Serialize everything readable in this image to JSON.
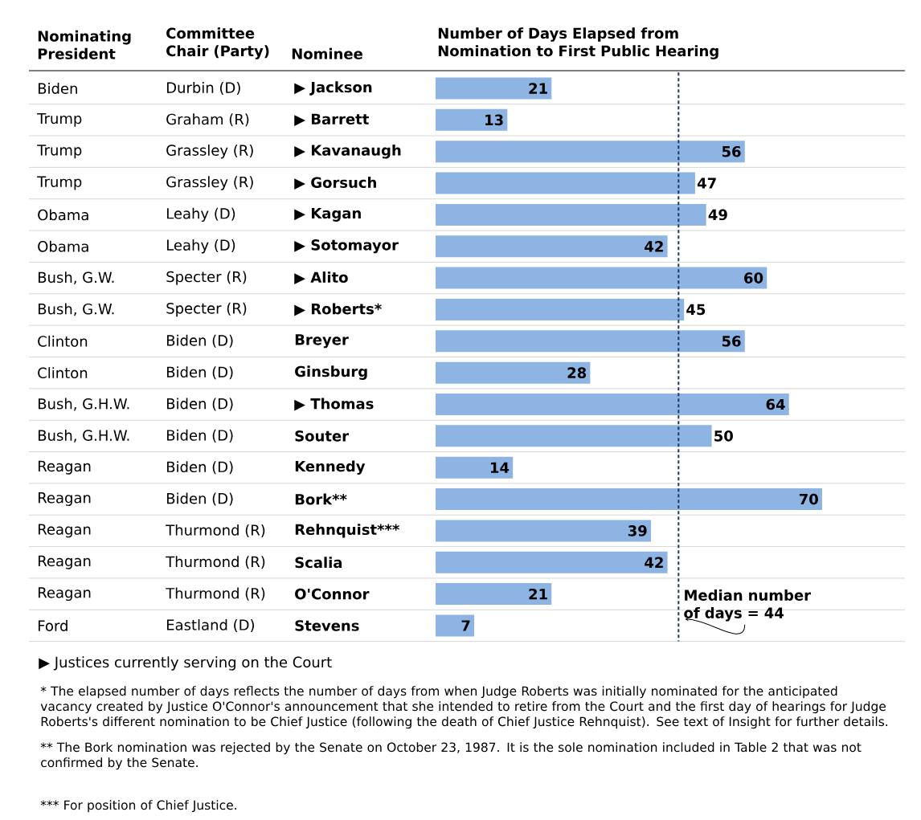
{
  "chart_data": {
    "type": "bar",
    "orientation": "horizontal",
    "title": "Number of Days Elapsed from Nomination to First Public Hearing",
    "ylabel": "Nominee",
    "categories": [
      "▶ Jackson",
      "▶ Barrett",
      "▶ Kavanaugh",
      "▶ Gorsuch",
      "▶ Kagan",
      "▶ Sotomayor",
      "▶ Alito",
      "▶ Roberts*",
      "Breyer",
      "Ginsburg",
      "▶ Thomas",
      "Souter",
      "Kennedy",
      "Bork**",
      "Rehnquist***",
      "Scalia",
      "O'Connor",
      "Stevens"
    ],
    "values": [
      21,
      13,
      56,
      47,
      49,
      42,
      60,
      45,
      56,
      28,
      64,
      50,
      14,
      70,
      39,
      42,
      21,
      7
    ],
    "color": "#8db4e2",
    "data_labels": true,
    "xlim": [
      0,
      85
    ],
    "tick_labels": "y",
    "ref_lines": [
      {
        "axis": "x",
        "value": 44,
        "label": "Median number of days = 44",
        "color": "#1f3864",
        "line_style": "dashed"
      }
    ],
    "annotations": [
      "Nominating President",
      "Committee Chair (Party)",
      "Biden",
      "Trump",
      "Trump",
      "Trump",
      "Obama",
      "Obama",
      "Bush, G.W.",
      "Bush, G.W.",
      "Clinton",
      "Clinton",
      "Bush, G.H.W.",
      "Bush, G.H.W.",
      "Reagan",
      "Reagan",
      "Reagan",
      "Reagan",
      "Reagan",
      "Ford",
      "Durbin (D)",
      "Graham (R)",
      "Grassley (R)",
      "Grassley (R)",
      "Leahy (D)",
      "Leahy (D)",
      "Specter (R)",
      "Specter (R)",
      "Biden (D)",
      "Biden (D)",
      "Biden (D)",
      "Biden (D)",
      "Biden (D)",
      "Biden (D)",
      "Thurmond (R)",
      "Thurmond (R)",
      "Thurmond (R)",
      "Eastland (D)",
      "▶ Justices currently serving on the Court",
      "* The elapsed number of days reflects the number of days from when Judge Roberts was initially nominated for the anticipated vacancy created by Justice O'Connor's announcement that she intended to retire from the Court and the first day of hearings for Judge Roberts's different nomination to be Chief Justice (following the death of Chief Justice Rehnquist). See text of Insight for further details.",
      "** The Bork nomination was rejected by the Senate on October 23, 1987. It is the sole nomination included in Table 2 that was not confirmed by the Senate.",
      "*** For position of Chief Justice."
    ]
  }
}
